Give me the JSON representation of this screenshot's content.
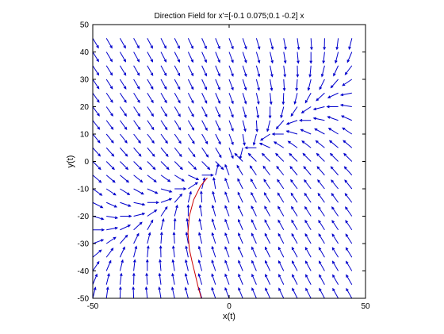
{
  "chart_data": {
    "type": "quiver",
    "title": "Direction Field for x'=[-0.1 0.075;0.1 -0.2] x",
    "xlabel": "x(t)",
    "ylabel": "y(t)",
    "xlim": [
      -50,
      50
    ],
    "ylim": [
      -50,
      50
    ],
    "xticks": [
      -50,
      0,
      50
    ],
    "yticks": [
      -50,
      -40,
      -30,
      -20,
      -10,
      0,
      10,
      20,
      30,
      40,
      50
    ],
    "grid": false,
    "matrix": [
      [
        -0.1,
        0.075
      ],
      [
        0.1,
        -0.2
      ]
    ],
    "field_grid": {
      "min": -50,
      "max": 45,
      "step": 5
    },
    "field_color": "#0000cc",
    "series": [
      {
        "color": "#cc0000",
        "x": [
          -8,
          -10.5,
          -13,
          -14.6,
          -15.1,
          -14.6,
          -13.5,
          -12.5,
          -11.8,
          -11.2,
          -10.6,
          -10.2
        ],
        "y": [
          -6,
          -9,
          -14,
          -20,
          -26,
          -32,
          -37,
          -41,
          -44,
          -46.5,
          -48.5,
          -50
        ]
      }
    ]
  }
}
